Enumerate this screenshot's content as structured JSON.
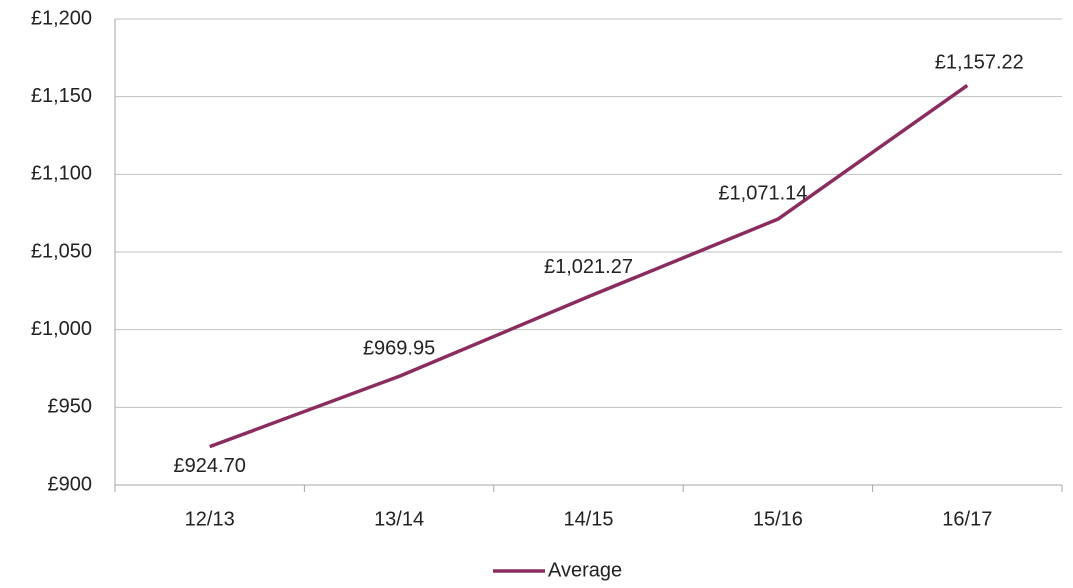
{
  "chart_data": {
    "type": "line",
    "categories": [
      "12/13",
      "13/14",
      "14/15",
      "15/16",
      "16/17"
    ],
    "series": [
      {
        "name": "Average",
        "color": "#8b2c5e",
        "values": [
          924.7,
          969.95,
          1021.27,
          1071.14,
          1157.22
        ],
        "value_labels": [
          "£924.70",
          "£969.95",
          "£1,021.27",
          "£1,071.14",
          "£1,157.22"
        ]
      }
    ],
    "ylim": [
      900,
      1200
    ],
    "yticks": [
      {
        "value": 900,
        "label": "£900"
      },
      {
        "value": 950,
        "label": "£950"
      },
      {
        "value": 1000,
        "label": "£1,000"
      },
      {
        "value": 1050,
        "label": "£1,050"
      },
      {
        "value": 1100,
        "label": "£1,100"
      },
      {
        "value": 1150,
        "label": "£1,150"
      },
      {
        "value": 1200,
        "label": "£1,200"
      }
    ],
    "grid": true,
    "legend": "bottom"
  }
}
